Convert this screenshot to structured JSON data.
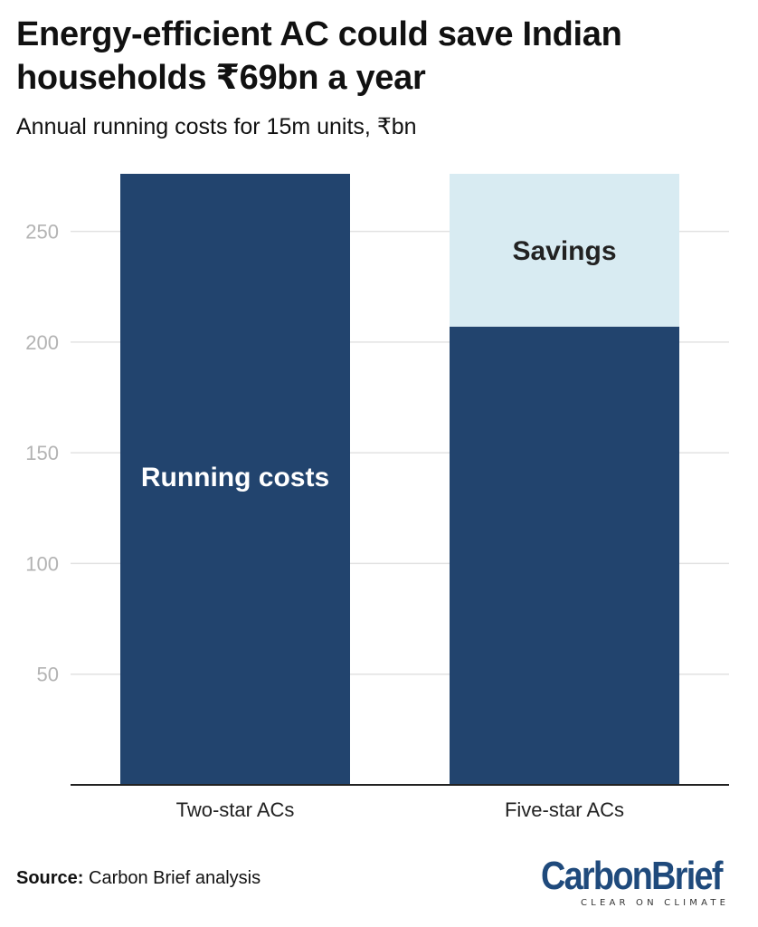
{
  "title": "Energy-efficient AC could save Indian households ₹69bn a year",
  "subtitle": "Annual running costs for 15m units, ₹bn",
  "chart_data": {
    "type": "bar",
    "stacked": true,
    "categories": [
      "Two-star ACs",
      "Five-star ACs"
    ],
    "series": [
      {
        "name": "Running costs",
        "values": [
          276,
          207
        ],
        "color": "#22446e"
      },
      {
        "name": "Savings",
        "values": [
          0,
          69
        ],
        "color": "#d8ebf2"
      }
    ],
    "yticks": [
      50,
      100,
      150,
      200,
      250
    ],
    "ylim": [
      0,
      276
    ],
    "grid": true,
    "xlabel": "",
    "ylabel": ""
  },
  "source": {
    "label": "Source:",
    "text": " Carbon Brief analysis"
  },
  "logo": {
    "carbon": "Carbon",
    "brief": "Brief",
    "tagline": "CLEAR ON CLIMATE"
  }
}
